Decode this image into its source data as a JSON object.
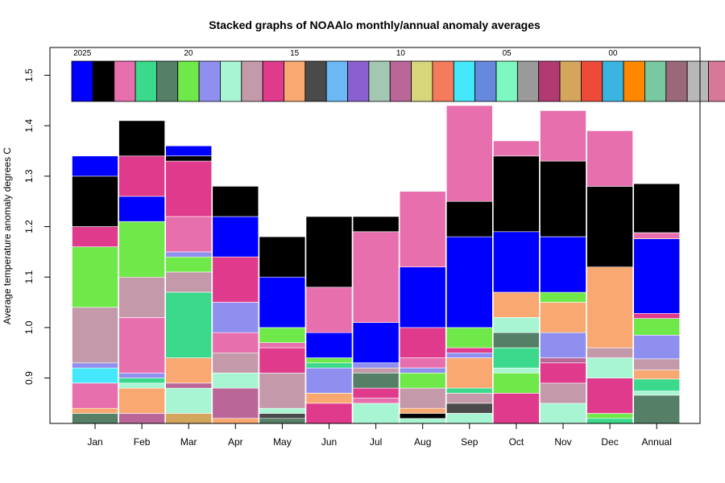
{
  "chart_data": {
    "type": "stacked-bar",
    "title": "Stacked graphs of NOAAlo monthly/annual anomaly averages",
    "xlabel": "",
    "ylabel": "Average temperature anomaly degrees C",
    "ylim": [
      0.81,
      1.555
    ],
    "yticks": [
      0.9,
      1.0,
      1.1,
      1.2,
      1.3,
      1.4,
      1.5
    ],
    "ytick_labels": [
      "0.9",
      "1.0",
      "1.1",
      "1.2",
      "1.3",
      "1.4",
      "1.5"
    ],
    "categories": [
      "Jan",
      "Feb",
      "Mar",
      "Apr",
      "May",
      "Jun",
      "Jul",
      "Aug",
      "Sep",
      "Oct",
      "Nov",
      "Dec",
      "Annual"
    ],
    "legend": {
      "years": [
        2025,
        2024,
        2023,
        2022,
        2021,
        2020,
        2019,
        2018,
        2017,
        2016,
        2015,
        2014,
        2013,
        2012,
        2011,
        2010,
        2009,
        2008,
        2007,
        2006,
        2005,
        2004,
        2003,
        2002,
        2001,
        2000,
        1999,
        1998,
        1997,
        1996,
        1995
      ],
      "labels": [
        {
          "index": 0,
          "text": "2025"
        },
        {
          "index": 5,
          "text": "20"
        },
        {
          "index": 10,
          "text": "15"
        },
        {
          "index": 15,
          "text": "10"
        },
        {
          "index": 20,
          "text": "05"
        },
        {
          "index": 25,
          "text": "00"
        }
      ],
      "colors": [
        "#0000ff",
        "#000000",
        "#e86fad",
        "#3bd98c",
        "#567f67",
        "#6fe84a",
        "#8f8ff0",
        "#a8f5d3",
        "#c49aab",
        "#e03a8c",
        "#f8a870",
        "#4a4a4a",
        "#6bb8f5",
        "#8a5fd0",
        "#a3c7b3",
        "#bb6699",
        "#d8d67a",
        "#f47c5c",
        "#45e8fa",
        "#6688dd",
        "#7df8c0",
        "#9a9a9a",
        "#b13a73",
        "#d4a55c",
        "#ee4a3a",
        "#3ab5e0",
        "#ff8800",
        "#78c8a0",
        "#9a6878",
        "#b8b8b8",
        "#d87898"
      ]
    },
    "series": [
      {
        "name": "Jan",
        "segments": [
          {
            "c": 4,
            "y0": 0.81,
            "y1": 0.83
          },
          {
            "c": 10,
            "y0": 0.83,
            "y1": 0.84
          },
          {
            "c": 2,
            "y0": 0.84,
            "y1": 0.89
          },
          {
            "c": 18,
            "y0": 0.89,
            "y1": 0.92
          },
          {
            "c": 6,
            "y0": 0.92,
            "y1": 0.93
          },
          {
            "c": 8,
            "y0": 0.93,
            "y1": 1.04
          },
          {
            "c": 5,
            "y0": 1.04,
            "y1": 1.16
          },
          {
            "c": 9,
            "y0": 1.16,
            "y1": 1.2
          },
          {
            "c": 1,
            "y0": 1.2,
            "y1": 1.3
          },
          {
            "c": 0,
            "y0": 1.3,
            "y1": 1.34
          }
        ]
      },
      {
        "name": "Feb",
        "segments": [
          {
            "c": 15,
            "y0": 0.81,
            "y1": 0.83
          },
          {
            "c": 10,
            "y0": 0.83,
            "y1": 0.88
          },
          {
            "c": 7,
            "y0": 0.88,
            "y1": 0.89
          },
          {
            "c": 3,
            "y0": 0.89,
            "y1": 0.9
          },
          {
            "c": 6,
            "y0": 0.9,
            "y1": 0.91
          },
          {
            "c": 2,
            "y0": 0.91,
            "y1": 1.02
          },
          {
            "c": 8,
            "y0": 1.02,
            "y1": 1.1
          },
          {
            "c": 5,
            "y0": 1.1,
            "y1": 1.21
          },
          {
            "c": 0,
            "y0": 1.21,
            "y1": 1.26
          },
          {
            "c": 9,
            "y0": 1.26,
            "y1": 1.34
          },
          {
            "c": 1,
            "y0": 1.34,
            "y1": 1.41
          }
        ]
      },
      {
        "name": "Mar",
        "segments": [
          {
            "c": 23,
            "y0": 0.81,
            "y1": 0.83
          },
          {
            "c": 7,
            "y0": 0.83,
            "y1": 0.88
          },
          {
            "c": 15,
            "y0": 0.88,
            "y1": 0.89
          },
          {
            "c": 10,
            "y0": 0.89,
            "y1": 0.94
          },
          {
            "c": 3,
            "y0": 0.94,
            "y1": 1.07
          },
          {
            "c": 8,
            "y0": 1.07,
            "y1": 1.11
          },
          {
            "c": 5,
            "y0": 1.11,
            "y1": 1.14
          },
          {
            "c": 6,
            "y0": 1.14,
            "y1": 1.15
          },
          {
            "c": 2,
            "y0": 1.15,
            "y1": 1.22
          },
          {
            "c": 9,
            "y0": 1.22,
            "y1": 1.33
          },
          {
            "c": 1,
            "y0": 1.33,
            "y1": 1.34
          },
          {
            "c": 0,
            "y0": 1.34,
            "y1": 1.36
          }
        ]
      },
      {
        "name": "Apr",
        "segments": [
          {
            "c": 10,
            "y0": 0.81,
            "y1": 0.82
          },
          {
            "c": 15,
            "y0": 0.82,
            "y1": 0.88
          },
          {
            "c": 7,
            "y0": 0.88,
            "y1": 0.91
          },
          {
            "c": 8,
            "y0": 0.91,
            "y1": 0.95
          },
          {
            "c": 2,
            "y0": 0.95,
            "y1": 0.99
          },
          {
            "c": 6,
            "y0": 0.99,
            "y1": 1.05
          },
          {
            "c": 9,
            "y0": 1.05,
            "y1": 1.14
          },
          {
            "c": 0,
            "y0": 1.14,
            "y1": 1.22
          },
          {
            "c": 1,
            "y0": 1.22,
            "y1": 1.28
          }
        ]
      },
      {
        "name": "May",
        "segments": [
          {
            "c": 4,
            "y0": 0.81,
            "y1": 0.82
          },
          {
            "c": 11,
            "y0": 0.82,
            "y1": 0.83
          },
          {
            "c": 7,
            "y0": 0.83,
            "y1": 0.84
          },
          {
            "c": 8,
            "y0": 0.84,
            "y1": 0.91
          },
          {
            "c": 9,
            "y0": 0.91,
            "y1": 0.96
          },
          {
            "c": 2,
            "y0": 0.96,
            "y1": 0.97
          },
          {
            "c": 5,
            "y0": 0.97,
            "y1": 1.0
          },
          {
            "c": 0,
            "y0": 1.0,
            "y1": 1.1
          },
          {
            "c": 1,
            "y0": 1.1,
            "y1": 1.18
          }
        ]
      },
      {
        "name": "Jun",
        "segments": [
          {
            "c": 9,
            "y0": 0.81,
            "y1": 0.85
          },
          {
            "c": 10,
            "y0": 0.85,
            "y1": 0.87
          },
          {
            "c": 6,
            "y0": 0.87,
            "y1": 0.92
          },
          {
            "c": 3,
            "y0": 0.92,
            "y1": 0.93
          },
          {
            "c": 5,
            "y0": 0.93,
            "y1": 0.94
          },
          {
            "c": 0,
            "y0": 0.94,
            "y1": 0.99
          },
          {
            "c": 2,
            "y0": 0.99,
            "y1": 1.08
          },
          {
            "c": 1,
            "y0": 1.08,
            "y1": 1.22
          }
        ]
      },
      {
        "name": "Jul",
        "segments": [
          {
            "c": 7,
            "y0": 0.81,
            "y1": 0.85
          },
          {
            "c": 2,
            "y0": 0.85,
            "y1": 0.86
          },
          {
            "c": 9,
            "y0": 0.86,
            "y1": 0.88
          },
          {
            "c": 4,
            "y0": 0.88,
            "y1": 0.91
          },
          {
            "c": 8,
            "y0": 0.91,
            "y1": 0.92
          },
          {
            "c": 6,
            "y0": 0.92,
            "y1": 0.93
          },
          {
            "c": 0,
            "y0": 0.93,
            "y1": 1.01
          },
          {
            "c": 2,
            "y0": 1.01,
            "y1": 1.19
          },
          {
            "c": 1,
            "y0": 1.19,
            "y1": 1.22
          }
        ]
      },
      {
        "name": "Aug",
        "segments": [
          {
            "c": 7,
            "y0": 0.81,
            "y1": 0.82
          },
          {
            "c": 1,
            "y0": 0.82,
            "y1": 0.83
          },
          {
            "c": 10,
            "y0": 0.83,
            "y1": 0.84
          },
          {
            "c": 8,
            "y0": 0.84,
            "y1": 0.88
          },
          {
            "c": 5,
            "y0": 0.88,
            "y1": 0.91
          },
          {
            "c": 6,
            "y0": 0.91,
            "y1": 0.92
          },
          {
            "c": 2,
            "y0": 0.92,
            "y1": 0.94
          },
          {
            "c": 9,
            "y0": 0.94,
            "y1": 1.0
          },
          {
            "c": 0,
            "y0": 1.0,
            "y1": 1.12
          },
          {
            "c": 2,
            "y0": 1.12,
            "y1": 1.27
          }
        ]
      },
      {
        "name": "Sep",
        "segments": [
          {
            "c": 7,
            "y0": 0.81,
            "y1": 0.83
          },
          {
            "c": 11,
            "y0": 0.83,
            "y1": 0.85
          },
          {
            "c": 8,
            "y0": 0.85,
            "y1": 0.87
          },
          {
            "c": 3,
            "y0": 0.87,
            "y1": 0.88
          },
          {
            "c": 10,
            "y0": 0.88,
            "y1": 0.94
          },
          {
            "c": 6,
            "y0": 0.94,
            "y1": 0.95
          },
          {
            "c": 9,
            "y0": 0.95,
            "y1": 0.96
          },
          {
            "c": 5,
            "y0": 0.96,
            "y1": 1.0
          },
          {
            "c": 0,
            "y0": 1.0,
            "y1": 1.18
          },
          {
            "c": 1,
            "y0": 1.18,
            "y1": 1.25
          },
          {
            "c": 2,
            "y0": 1.25,
            "y1": 1.44
          }
        ]
      },
      {
        "name": "Oct",
        "segments": [
          {
            "c": 9,
            "y0": 0.81,
            "y1": 0.87
          },
          {
            "c": 5,
            "y0": 0.87,
            "y1": 0.91
          },
          {
            "c": 7,
            "y0": 0.91,
            "y1": 0.92
          },
          {
            "c": 3,
            "y0": 0.92,
            "y1": 0.96
          },
          {
            "c": 4,
            "y0": 0.96,
            "y1": 0.99
          },
          {
            "c": 7,
            "y0": 0.99,
            "y1": 1.02
          },
          {
            "c": 10,
            "y0": 1.02,
            "y1": 1.07
          },
          {
            "c": 0,
            "y0": 1.07,
            "y1": 1.19
          },
          {
            "c": 1,
            "y0": 1.19,
            "y1": 1.34
          },
          {
            "c": 2,
            "y0": 1.34,
            "y1": 1.37
          }
        ]
      },
      {
        "name": "Nov",
        "segments": [
          {
            "c": 7,
            "y0": 0.81,
            "y1": 0.85
          },
          {
            "c": 8,
            "y0": 0.85,
            "y1": 0.89
          },
          {
            "c": 9,
            "y0": 0.89,
            "y1": 0.93
          },
          {
            "c": 15,
            "y0": 0.93,
            "y1": 0.94
          },
          {
            "c": 6,
            "y0": 0.94,
            "y1": 0.99
          },
          {
            "c": 10,
            "y0": 0.99,
            "y1": 1.05
          },
          {
            "c": 5,
            "y0": 1.05,
            "y1": 1.07
          },
          {
            "c": 0,
            "y0": 1.07,
            "y1": 1.18
          },
          {
            "c": 1,
            "y0": 1.18,
            "y1": 1.33
          },
          {
            "c": 2,
            "y0": 1.33,
            "y1": 1.43
          }
        ]
      },
      {
        "name": "Dec",
        "segments": [
          {
            "c": 3,
            "y0": 0.81,
            "y1": 0.82
          },
          {
            "c": 5,
            "y0": 0.82,
            "y1": 0.83
          },
          {
            "c": 9,
            "y0": 0.83,
            "y1": 0.9
          },
          {
            "c": 7,
            "y0": 0.9,
            "y1": 0.94
          },
          {
            "c": 8,
            "y0": 0.94,
            "y1": 0.96
          },
          {
            "c": 10,
            "y0": 0.96,
            "y1": 1.12
          },
          {
            "c": 1,
            "y0": 1.12,
            "y1": 1.28
          },
          {
            "c": 2,
            "y0": 1.28,
            "y1": 1.39
          }
        ]
      },
      {
        "name": "Annual",
        "segments": [
          {
            "c": 4,
            "y0": 0.81,
            "y1": 0.866
          },
          {
            "c": 7,
            "y0": 0.866,
            "y1": 0.874
          },
          {
            "c": 3,
            "y0": 0.874,
            "y1": 0.898
          },
          {
            "c": 10,
            "y0": 0.898,
            "y1": 0.916
          },
          {
            "c": 8,
            "y0": 0.916,
            "y1": 0.938
          },
          {
            "c": 6,
            "y0": 0.938,
            "y1": 0.985
          },
          {
            "c": 5,
            "y0": 0.985,
            "y1": 1.018
          },
          {
            "c": 9,
            "y0": 1.018,
            "y1": 1.028
          },
          {
            "c": 0,
            "y0": 1.028,
            "y1": 1.176
          },
          {
            "c": 2,
            "y0": 1.176,
            "y1": 1.188
          },
          {
            "c": 1,
            "y0": 1.188,
            "y1": 1.285
          }
        ]
      }
    ]
  }
}
